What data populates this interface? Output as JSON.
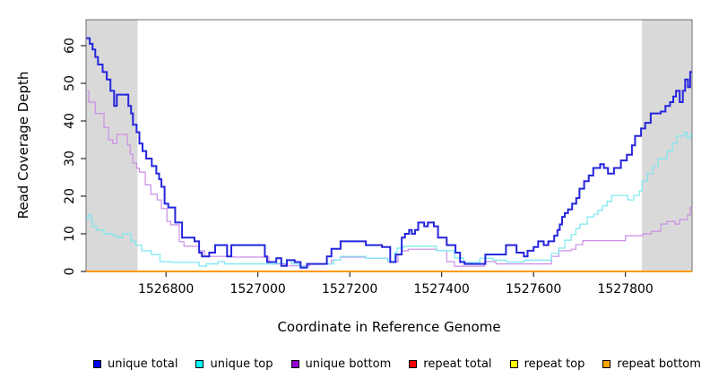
{
  "chart_data": {
    "type": "line",
    "subtype": "step",
    "title": "",
    "xlabel": "Coordinate in Reference Genome",
    "ylabel": "Read Coverage Depth",
    "xlim": [
      1526626,
      1527945
    ],
    "ylim": [
      0,
      66.9
    ],
    "x_ticks": [
      1526800,
      1527000,
      1527200,
      1527400,
      1527600,
      1527800
    ],
    "y_ticks": [
      0,
      10,
      20,
      30,
      40,
      50,
      60
    ],
    "grid": false,
    "legend_position": "bottom",
    "shaded_regions": [
      {
        "x0": 1526626,
        "x1": 1526738,
        "color": "#d9d9d9"
      },
      {
        "x0": 1527836,
        "x1": 1527945,
        "color": "#d9d9d9"
      }
    ],
    "series": [
      {
        "name": "repeat total",
        "legend_color": "#ff0000",
        "line_color": "#ff0000",
        "line_width": 1,
        "points": [
          [
            1526626,
            0
          ],
          [
            1527945,
            0
          ]
        ]
      },
      {
        "name": "repeat top",
        "legend_color": "#ffff00",
        "line_color": "#ffff00",
        "line_width": 1,
        "points": [
          [
            1526626,
            0
          ],
          [
            1527945,
            0
          ]
        ]
      },
      {
        "name": "unique bottom",
        "legend_color": "#9400d3",
        "line_color": "#cb8ee6",
        "line_width": 1.2,
        "points": [
          [
            1526626,
            48
          ],
          [
            1526632,
            45
          ],
          [
            1526646,
            42
          ],
          [
            1526665,
            38.3
          ],
          [
            1526675,
            35
          ],
          [
            1526684,
            34
          ],
          [
            1526693,
            36.4
          ],
          [
            1526716,
            33.6
          ],
          [
            1526722,
            31.2
          ],
          [
            1526728,
            28.8
          ],
          [
            1526736,
            27.4
          ],
          [
            1526742,
            26.4
          ],
          [
            1526755,
            23
          ],
          [
            1526767,
            20.5
          ],
          [
            1526781,
            19
          ],
          [
            1526790,
            16.7
          ],
          [
            1526802,
            13.3
          ],
          [
            1526810,
            12.4
          ],
          [
            1526829,
            7.9
          ],
          [
            1526839,
            6.7
          ],
          [
            1526872,
            5.5
          ],
          [
            1526884,
            4
          ],
          [
            1526946,
            3.8
          ],
          [
            1527024,
            2
          ],
          [
            1527060,
            1.5
          ],
          [
            1527113,
            2
          ],
          [
            1527160,
            3
          ],
          [
            1527180,
            3.8
          ],
          [
            1527235,
            3.5
          ],
          [
            1527283,
            2.6
          ],
          [
            1527305,
            4.5
          ],
          [
            1527313,
            5.5
          ],
          [
            1527327,
            5.9
          ],
          [
            1527389,
            5.5
          ],
          [
            1527411,
            2.6
          ],
          [
            1527428,
            1.4
          ],
          [
            1527493,
            2.6
          ],
          [
            1527518,
            2
          ],
          [
            1527639,
            4
          ],
          [
            1527655,
            5.5
          ],
          [
            1527682,
            5.9
          ],
          [
            1527692,
            7.1
          ],
          [
            1527707,
            8.2
          ],
          [
            1527800,
            9.5
          ],
          [
            1527838,
            10
          ],
          [
            1527857,
            10.7
          ],
          [
            1527877,
            12.6
          ],
          [
            1527890,
            13.3
          ],
          [
            1527908,
            12.6
          ],
          [
            1527918,
            13.8
          ],
          [
            1527935,
            15
          ],
          [
            1527941,
            17
          ],
          [
            1527945,
            17
          ]
        ]
      },
      {
        "name": "unique top",
        "legend_color": "#00ffff",
        "line_color": "#79e8f2",
        "line_width": 1.2,
        "points": [
          [
            1526626,
            14
          ],
          [
            1526630,
            15
          ],
          [
            1526636,
            14
          ],
          [
            1526640,
            12
          ],
          [
            1526648,
            11
          ],
          [
            1526665,
            10
          ],
          [
            1526685,
            9.5
          ],
          [
            1526695,
            9
          ],
          [
            1526705,
            10
          ],
          [
            1526724,
            8
          ],
          [
            1526734,
            7
          ],
          [
            1526747,
            5.5
          ],
          [
            1526768,
            4.5
          ],
          [
            1526787,
            2.6
          ],
          [
            1526810,
            2.4
          ],
          [
            1526872,
            1.4
          ],
          [
            1526888,
            2
          ],
          [
            1526913,
            2.6
          ],
          [
            1526927,
            2
          ],
          [
            1527040,
            2.2
          ],
          [
            1527063,
            3
          ],
          [
            1527073,
            2
          ],
          [
            1527090,
            1.4
          ],
          [
            1527107,
            2
          ],
          [
            1527165,
            3
          ],
          [
            1527180,
            4
          ],
          [
            1527235,
            3.5
          ],
          [
            1527283,
            2.6
          ],
          [
            1527298,
            5
          ],
          [
            1527303,
            6.2
          ],
          [
            1527317,
            6.7
          ],
          [
            1527389,
            5.5
          ],
          [
            1527428,
            3.6
          ],
          [
            1527448,
            2.4
          ],
          [
            1527483,
            3.5
          ],
          [
            1527512,
            3
          ],
          [
            1527541,
            2.5
          ],
          [
            1527580,
            3
          ],
          [
            1527639,
            4.8
          ],
          [
            1527655,
            6.2
          ],
          [
            1527668,
            8.3
          ],
          [
            1527682,
            9.8
          ],
          [
            1527692,
            11.4
          ],
          [
            1527701,
            12.6
          ],
          [
            1527717,
            14.5
          ],
          [
            1527731,
            15.2
          ],
          [
            1527740,
            16.2
          ],
          [
            1527750,
            17.4
          ],
          [
            1527760,
            18.6
          ],
          [
            1527770,
            20.2
          ],
          [
            1527805,
            19
          ],
          [
            1527818,
            20.2
          ],
          [
            1527830,
            21.4
          ],
          [
            1527836,
            24
          ],
          [
            1527848,
            26
          ],
          [
            1527859,
            28
          ],
          [
            1527871,
            30
          ],
          [
            1527891,
            32
          ],
          [
            1527902,
            34
          ],
          [
            1527912,
            36
          ],
          [
            1527928,
            37
          ],
          [
            1527934,
            35.5
          ],
          [
            1527941,
            36.5
          ],
          [
            1527945,
            36.5
          ]
        ]
      },
      {
        "name": "unique total",
        "legend_color": "#0000ff",
        "line_color": "#2525dd",
        "line_width": 2,
        "points": [
          [
            1526626,
            62
          ],
          [
            1526634,
            60.5
          ],
          [
            1526640,
            59
          ],
          [
            1526646,
            57
          ],
          [
            1526652,
            55
          ],
          [
            1526662,
            53
          ],
          [
            1526671,
            51
          ],
          [
            1526679,
            48
          ],
          [
            1526687,
            44
          ],
          [
            1526693,
            47
          ],
          [
            1526718,
            44
          ],
          [
            1526724,
            42
          ],
          [
            1526728,
            39
          ],
          [
            1526736,
            37
          ],
          [
            1526742,
            34
          ],
          [
            1526749,
            32
          ],
          [
            1526757,
            30
          ],
          [
            1526769,
            28
          ],
          [
            1526779,
            26
          ],
          [
            1526785,
            24.5
          ],
          [
            1526790,
            22.5
          ],
          [
            1526797,
            18
          ],
          [
            1526805,
            17
          ],
          [
            1526820,
            13
          ],
          [
            1526835,
            9
          ],
          [
            1526862,
            8
          ],
          [
            1526872,
            5
          ],
          [
            1526878,
            4
          ],
          [
            1526894,
            5
          ],
          [
            1526907,
            7
          ],
          [
            1526933,
            4
          ],
          [
            1526942,
            7
          ],
          [
            1527015,
            4
          ],
          [
            1527020,
            2.5
          ],
          [
            1527040,
            3.5
          ],
          [
            1527051,
            1.5
          ],
          [
            1527063,
            3
          ],
          [
            1527080,
            2.5
          ],
          [
            1527093,
            1
          ],
          [
            1527107,
            2
          ],
          [
            1527150,
            4
          ],
          [
            1527160,
            6
          ],
          [
            1527180,
            8
          ],
          [
            1527235,
            7
          ],
          [
            1527270,
            6.5
          ],
          [
            1527288,
            2.5
          ],
          [
            1527300,
            4.5
          ],
          [
            1527313,
            9
          ],
          [
            1527320,
            10
          ],
          [
            1527329,
            11
          ],
          [
            1527335,
            10
          ],
          [
            1527342,
            11
          ],
          [
            1527349,
            13
          ],
          [
            1527362,
            12
          ],
          [
            1527370,
            13
          ],
          [
            1527383,
            12
          ],
          [
            1527392,
            9
          ],
          [
            1527411,
            7
          ],
          [
            1527430,
            5
          ],
          [
            1527440,
            2.5
          ],
          [
            1527450,
            2
          ],
          [
            1527495,
            4.5
          ],
          [
            1527540,
            7
          ],
          [
            1527563,
            5
          ],
          [
            1527579,
            4
          ],
          [
            1527587,
            5.5
          ],
          [
            1527600,
            6.5
          ],
          [
            1527610,
            8
          ],
          [
            1527622,
            7
          ],
          [
            1527632,
            8
          ],
          [
            1527645,
            9.5
          ],
          [
            1527652,
            11
          ],
          [
            1527657,
            12.5
          ],
          [
            1527662,
            14.5
          ],
          [
            1527668,
            15.5
          ],
          [
            1527675,
            16.5
          ],
          [
            1527684,
            18
          ],
          [
            1527693,
            19.5
          ],
          [
            1527700,
            22
          ],
          [
            1527710,
            24
          ],
          [
            1527720,
            25.5
          ],
          [
            1527730,
            27.5
          ],
          [
            1527745,
            28.5
          ],
          [
            1527753,
            27.5
          ],
          [
            1527762,
            26
          ],
          [
            1527775,
            27.5
          ],
          [
            1527790,
            29.5
          ],
          [
            1527803,
            31
          ],
          [
            1527814,
            33.5
          ],
          [
            1527821,
            36
          ],
          [
            1527834,
            38
          ],
          [
            1527843,
            39.5
          ],
          [
            1527855,
            42
          ],
          [
            1527877,
            42.5
          ],
          [
            1527887,
            44
          ],
          [
            1527897,
            45
          ],
          [
            1527904,
            46.5
          ],
          [
            1527910,
            48
          ],
          [
            1527918,
            45
          ],
          [
            1527925,
            48
          ],
          [
            1527930,
            51
          ],
          [
            1527936,
            49
          ],
          [
            1527941,
            53
          ],
          [
            1527945,
            53
          ]
        ]
      },
      {
        "name": "repeat bottom",
        "legend_color": "#ffa500",
        "line_color": "#ff9900",
        "line_width": 2,
        "points": [
          [
            1526626,
            0
          ],
          [
            1527945,
            0
          ]
        ]
      }
    ]
  },
  "axes": {
    "x_title": "Coordinate in Reference Genome",
    "y_title": "Read Coverage Depth"
  },
  "legend": {
    "items": [
      {
        "label": "unique total",
        "color": "#0000ff"
      },
      {
        "label": "unique top",
        "color": "#00ffff"
      },
      {
        "label": "unique bottom",
        "color": "#9400d3"
      },
      {
        "label": "repeat total",
        "color": "#ff0000"
      },
      {
        "label": "repeat top",
        "color": "#ffff00"
      },
      {
        "label": "repeat bottom",
        "color": "#ffa500"
      }
    ]
  },
  "layout_colors": {
    "plot_background": "#ffffff",
    "shaded_band": "#d9d9d9",
    "box_border": "#6e6e6e",
    "axis": "#000000"
  }
}
